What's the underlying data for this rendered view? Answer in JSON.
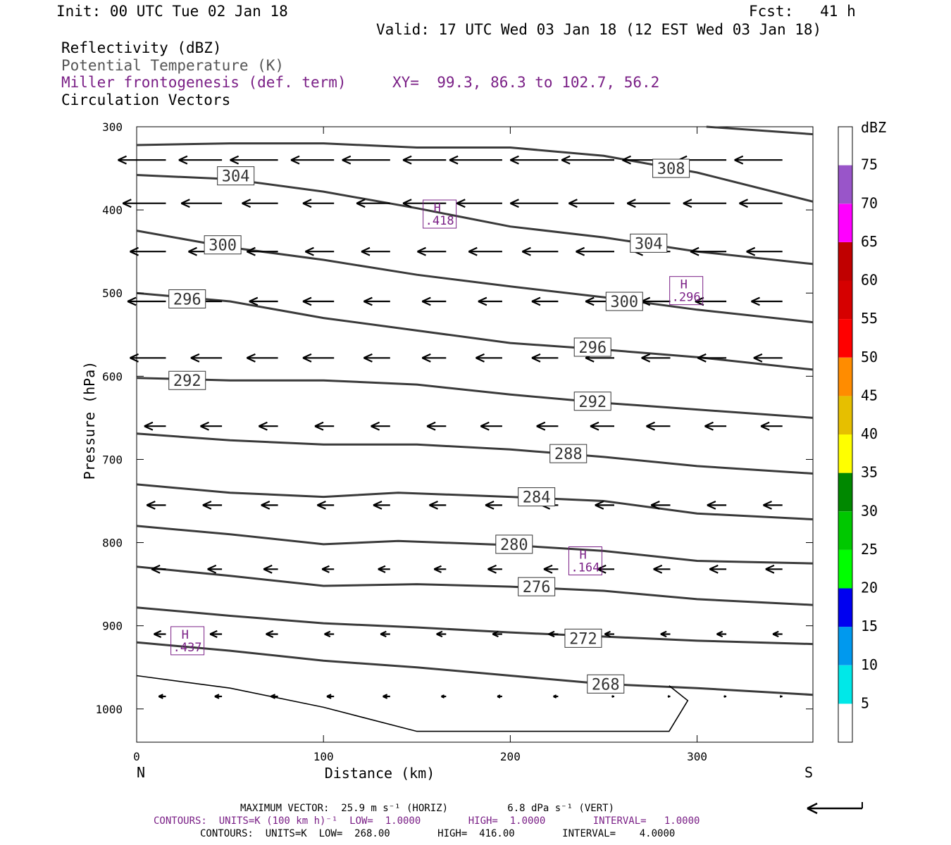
{
  "header": {
    "init": "Init: 00 UTC Tue 02 Jan 18",
    "fcst": "Fcst:   41 h",
    "valid": "Valid: 17 UTC Wed 03 Jan 18 (12 EST Wed 03 Jan 18)",
    "field1": "Reflectivity (dBZ)",
    "field2": "Potential Temperature (K)",
    "field3": "Miller frontogenesis (def. term)",
    "xy": "XY=  99.3, 86.3 to 102.7, 56.2",
    "field4": "Circulation Vectors"
  },
  "footer": {
    "max_vector": "MAXIMUM VECTOR:  25.9 m s⁻¹ (HORIZ)          6.8 dPa s⁻¹ (VERT)",
    "contours_fronto": "CONTOURS:  UNITS=K (100 km h)⁻¹  LOW=  1.0000        HIGH=  1.0000        INTERVAL=   1.0000",
    "contours_theta": "CONTOURS:  UNITS=K  LOW=  268.00        HIGH=  416.00        INTERVAL=    4.0000"
  },
  "chart_data": {
    "type": "cross-section",
    "xlabel": "Distance (km)",
    "ylabel": "Pressure (hPa)",
    "xlim": [
      0,
      362
    ],
    "ylim": [
      1040,
      300
    ],
    "x_ticks": [
      0,
      100,
      200,
      300
    ],
    "y_ticks": [
      300,
      400,
      500,
      600,
      700,
      800,
      900,
      1000
    ],
    "x_end_labels": {
      "left": "N",
      "right": "S"
    },
    "colorbar": {
      "label": "dBZ",
      "ticks": [
        5,
        10,
        15,
        20,
        25,
        30,
        35,
        40,
        45,
        50,
        55,
        60,
        65,
        70,
        75
      ],
      "colors": [
        "#ffffff",
        "#00e8e8",
        "#0099ee",
        "#0000f0",
        "#00ff00",
        "#00c800",
        "#008800",
        "#ffff00",
        "#e6bf00",
        "#ff8c00",
        "#ff0000",
        "#d60000",
        "#c00000",
        "#ff00ff",
        "#9955c9",
        "#ffffff"
      ]
    },
    "theta_contours": [
      {
        "value": "268",
        "labels": [
          [
            242,
            970
          ]
        ],
        "points": [
          [
            0,
            920
          ],
          [
            50,
            930
          ],
          [
            100,
            942
          ],
          [
            150,
            950
          ],
          [
            200,
            960
          ],
          [
            250,
            970
          ],
          [
            300,
            975
          ],
          [
            362,
            983
          ]
        ]
      },
      {
        "value": "272",
        "labels": [
          [
            230,
            915
          ]
        ],
        "points": [
          [
            0,
            878
          ],
          [
            50,
            888
          ],
          [
            100,
            897
          ],
          [
            150,
            902
          ],
          [
            200,
            908
          ],
          [
            250,
            913
          ],
          [
            300,
            918
          ],
          [
            362,
            922
          ]
        ]
      },
      {
        "value": "276",
        "labels": [
          [
            205,
            853
          ]
        ],
        "points": [
          [
            0,
            829
          ],
          [
            50,
            840
          ],
          [
            100,
            852
          ],
          [
            150,
            850
          ],
          [
            200,
            853
          ],
          [
            250,
            858
          ],
          [
            300,
            868
          ],
          [
            362,
            875
          ]
        ]
      },
      {
        "value": "280",
        "labels": [
          [
            193,
            802
          ]
        ],
        "points": [
          [
            0,
            780
          ],
          [
            50,
            790
          ],
          [
            100,
            802
          ],
          [
            140,
            798
          ],
          [
            200,
            803
          ],
          [
            250,
            810
          ],
          [
            300,
            822
          ],
          [
            362,
            825
          ]
        ]
      },
      {
        "value": "284",
        "labels": [
          [
            205,
            745
          ]
        ],
        "points": [
          [
            0,
            730
          ],
          [
            50,
            740
          ],
          [
            100,
            745
          ],
          [
            140,
            740
          ],
          [
            200,
            745
          ],
          [
            250,
            750
          ],
          [
            300,
            765
          ],
          [
            362,
            772
          ]
        ]
      },
      {
        "value": "288",
        "labels": [
          [
            222,
            693
          ]
        ],
        "points": [
          [
            0,
            669
          ],
          [
            50,
            677
          ],
          [
            100,
            682
          ],
          [
            150,
            682
          ],
          [
            200,
            688
          ],
          [
            250,
            697
          ],
          [
            300,
            708
          ],
          [
            362,
            717
          ]
        ]
      },
      {
        "value": "292",
        "labels": [
          [
            18,
            605
          ],
          [
            235,
            630
          ]
        ],
        "points": [
          [
            0,
            602
          ],
          [
            50,
            605
          ],
          [
            100,
            605
          ],
          [
            150,
            610
          ],
          [
            200,
            622
          ],
          [
            250,
            632
          ],
          [
            300,
            640
          ],
          [
            362,
            650
          ]
        ]
      },
      {
        "value": "296",
        "labels": [
          [
            18,
            507
          ],
          [
            235,
            565
          ]
        ],
        "points": [
          [
            0,
            500
          ],
          [
            50,
            510
          ],
          [
            100,
            530
          ],
          [
            150,
            545
          ],
          [
            200,
            560
          ],
          [
            250,
            568
          ],
          [
            300,
            577
          ],
          [
            362,
            592
          ]
        ]
      },
      {
        "value": "300",
        "labels": [
          [
            37,
            442
          ],
          [
            252,
            510
          ]
        ],
        "points": [
          [
            0,
            425
          ],
          [
            50,
            445
          ],
          [
            100,
            460
          ],
          [
            150,
            478
          ],
          [
            200,
            492
          ],
          [
            250,
            505
          ],
          [
            300,
            520
          ],
          [
            362,
            535
          ]
        ]
      },
      {
        "value": "304",
        "labels": [
          [
            44,
            359
          ],
          [
            265,
            440
          ]
        ],
        "points": [
          [
            0,
            358
          ],
          [
            50,
            363
          ],
          [
            100,
            378
          ],
          [
            150,
            398
          ],
          [
            200,
            420
          ],
          [
            250,
            433
          ],
          [
            300,
            450
          ],
          [
            362,
            465
          ]
        ]
      },
      {
        "value": "308",
        "labels": [
          [
            277,
            350
          ]
        ],
        "points": [
          [
            0,
            322
          ],
          [
            50,
            320
          ],
          [
            100,
            320
          ],
          [
            150,
            325
          ],
          [
            200,
            325
          ],
          [
            250,
            335
          ],
          [
            300,
            355
          ],
          [
            362,
            390
          ]
        ]
      },
      {
        "value": "312",
        "labels": [],
        "points": [
          [
            305,
            300
          ],
          [
            362,
            309
          ]
        ]
      }
    ],
    "frontogenesis_maxima": [
      {
        "label": "H",
        "value": ".418",
        "x": 162,
        "p": 405
      },
      {
        "label": "H",
        "value": ".296",
        "x": 294,
        "p": 497
      },
      {
        "label": "H",
        "value": ".164",
        "x": 240,
        "p": 822
      },
      {
        "label": "H",
        "value": ".437",
        "x": 27,
        "p": 918
      }
    ],
    "frontogenesis_contour_points": [
      [
        0,
        960
      ],
      [
        50,
        975
      ],
      [
        100,
        998
      ],
      [
        150,
        1027
      ],
      [
        285,
        1027
      ],
      [
        295,
        990
      ],
      [
        285,
        972
      ]
    ],
    "vectors": [
      {
        "p": 340,
        "x": [
          10,
          40,
          70,
          100,
          130,
          160,
          190,
          220,
          250,
          280,
          310,
          340
        ],
        "u": [
          -20,
          -18,
          -20,
          -18,
          -20,
          -18,
          -22,
          -20,
          -22,
          -20,
          -20,
          -20
        ]
      },
      {
        "p": 392,
        "x": [
          10,
          40,
          70,
          100,
          130,
          160,
          190,
          220,
          250,
          280,
          310,
          340
        ],
        "u": [
          -18,
          -17,
          -15,
          -13,
          -14,
          -18,
          -19,
          -20,
          -19,
          -18,
          -18,
          -18
        ]
      },
      {
        "p": 450,
        "x": [
          10,
          40,
          70,
          100,
          130,
          160,
          190,
          220,
          250,
          280,
          310,
          340
        ],
        "u": [
          -15,
          -14,
          -13,
          -12,
          -12,
          -12,
          -14,
          -15,
          -16,
          -15,
          -15,
          -15
        ]
      },
      {
        "p": 510,
        "x": [
          10,
          40,
          70,
          100,
          130,
          160,
          190,
          220,
          250,
          280,
          310,
          340
        ],
        "u": [
          -16,
          -14,
          -12,
          -13,
          -11,
          -10,
          -10,
          -11,
          -12,
          -12,
          -13,
          -13
        ]
      },
      {
        "p": 578,
        "x": [
          10,
          40,
          70,
          100,
          130,
          160,
          190,
          220,
          250,
          280,
          310,
          340
        ],
        "u": [
          -15,
          -13,
          -13,
          -13,
          -11,
          -10,
          -11,
          -11,
          -12,
          -12,
          -12,
          -12
        ]
      },
      {
        "p": 660,
        "x": [
          10,
          40,
          70,
          100,
          130,
          160,
          190,
          220,
          250,
          280,
          310,
          340
        ],
        "u": [
          -9,
          -9,
          -8,
          -8,
          -8,
          -8,
          -9,
          -9,
          -10,
          -10,
          -9,
          -9
        ]
      },
      {
        "p": 755,
        "x": [
          10,
          40,
          70,
          100,
          130,
          160,
          190,
          220,
          250,
          280,
          310,
          340
        ],
        "u": [
          -8,
          -8,
          -7,
          -7,
          -7,
          -7,
          -7,
          -7,
          -8,
          -8,
          -8,
          -8
        ]
      },
      {
        "p": 832,
        "x": [
          10,
          40,
          70,
          100,
          130,
          160,
          190,
          220,
          250,
          280,
          310,
          340
        ],
        "u": [
          -6,
          -6,
          -6,
          -5,
          -5,
          -5,
          -6,
          -6,
          -7,
          -7,
          -7,
          -7
        ]
      },
      {
        "p": 910,
        "x": [
          10,
          40,
          70,
          100,
          130,
          160,
          190,
          220,
          250,
          280,
          310,
          340
        ],
        "u": [
          -5,
          -5,
          -5,
          -4,
          -4,
          -4,
          -4,
          -4,
          -4,
          -4,
          -4,
          -4
        ]
      },
      {
        "p": 985,
        "x": [
          10,
          40,
          70,
          100,
          130,
          160,
          190,
          220,
          250,
          280,
          310,
          340
        ],
        "u": [
          -3,
          -3,
          -3,
          -3,
          -3,
          -2,
          -2,
          -2,
          -1,
          -1,
          -1,
          -1
        ]
      }
    ]
  }
}
